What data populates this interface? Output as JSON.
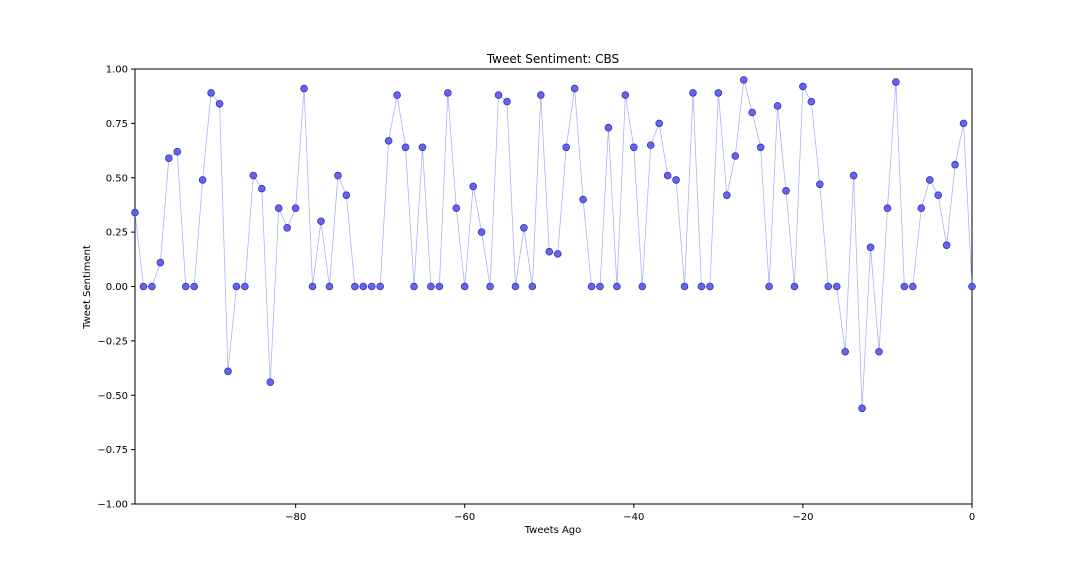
{
  "chart_data": {
    "type": "line",
    "title": "Tweet Sentiment: CBS",
    "xlabel": "Tweets Ago",
    "ylabel": "Tweet Sentiment",
    "xlim": [
      -99,
      0
    ],
    "ylim": [
      -1.0,
      1.0
    ],
    "grid": false,
    "legend": "none",
    "x_ticks": [
      -80,
      -60,
      -40,
      -20,
      0
    ],
    "x_tick_labels": [
      "−80",
      "−60",
      "−40",
      "−20",
      "0"
    ],
    "y_ticks": [
      -1.0,
      -0.75,
      -0.5,
      -0.25,
      0.0,
      0.25,
      0.5,
      0.75,
      1.0
    ],
    "y_tick_labels": [
      "−1.00",
      "−0.75",
      "−0.50",
      "−0.25",
      "0.00",
      "0.25",
      "0.50",
      "0.75",
      "1.00"
    ],
    "marker_color": "#5555ee",
    "marker_edge_color": "#3333aa",
    "line_color": "#8f8ff0",
    "series": [
      {
        "x": [
          -99,
          -98,
          -97,
          -96,
          -95,
          -94,
          -93,
          -92,
          -91,
          -90,
          -89,
          -88,
          -87,
          -86,
          -85,
          -84,
          -83,
          -82,
          -81,
          -80,
          -79,
          -78,
          -77,
          -76,
          -75,
          -74,
          -73,
          -72,
          -71,
          -70,
          -69,
          -68,
          -67,
          -66,
          -65,
          -64,
          -63,
          -62,
          -61,
          -60,
          -59,
          -58,
          -57,
          -56,
          -55,
          -54,
          -53,
          -52,
          -51,
          -50,
          -49,
          -48,
          -47,
          -46,
          -45,
          -44,
          -43,
          -42,
          -41,
          -40,
          -39,
          -38,
          -37,
          -36,
          -35,
          -34,
          -33,
          -32,
          -31,
          -30,
          -29,
          -28,
          -27,
          -26,
          -25,
          -24,
          -23,
          -22,
          -21,
          -20,
          -19,
          -18,
          -17,
          -16,
          -15,
          -14,
          -13,
          -12,
          -11,
          -10,
          -9,
          -8,
          -7,
          -6,
          -5,
          -4,
          -3,
          -2,
          -1,
          0
        ],
        "values": [
          0.34,
          0.0,
          0.0,
          0.11,
          0.59,
          0.62,
          0.0,
          0.0,
          0.49,
          0.89,
          0.84,
          -0.39,
          0.0,
          0.0,
          0.51,
          0.45,
          -0.44,
          0.36,
          0.27,
          0.36,
          0.91,
          0.0,
          0.3,
          0.0,
          0.51,
          0.42,
          0.0,
          0.0,
          0.0,
          0.0,
          0.67,
          0.88,
          0.64,
          0.0,
          0.64,
          0.0,
          0.0,
          0.89,
          0.36,
          0.0,
          0.46,
          0.25,
          0.0,
          0.88,
          0.85,
          0.0,
          0.27,
          0.0,
          0.88,
          0.16,
          0.15,
          0.64,
          0.91,
          0.4,
          0.0,
          0.0,
          0.73,
          0.0,
          0.88,
          0.64,
          0.0,
          0.65,
          0.75,
          0.51,
          0.49,
          0.0,
          0.89,
          0.0,
          0.0,
          0.89,
          0.42,
          0.6,
          0.95,
          0.8,
          0.64,
          0.0,
          0.83,
          0.44,
          0.0,
          0.92,
          0.85,
          0.47,
          0.0,
          0.0,
          -0.3,
          0.51,
          -0.56,
          0.18,
          -0.3,
          0.36,
          0.94,
          0.0,
          0.0,
          0.36,
          0.49,
          0.42,
          0.19,
          0.56,
          0.75,
          0.0
        ]
      }
    ]
  }
}
